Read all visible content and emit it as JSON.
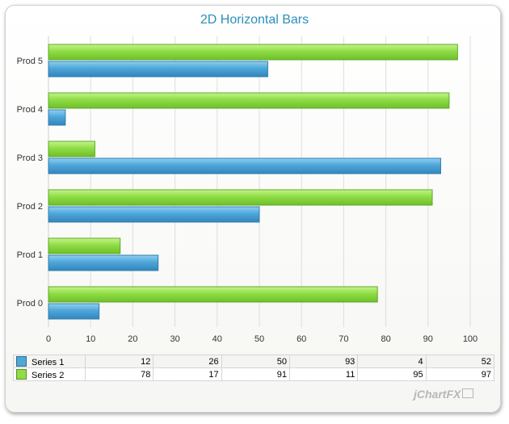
{
  "chart_data": {
    "type": "bar",
    "orientation": "horizontal",
    "title": "2D Horizontal Bars",
    "categories": [
      "Prod 0",
      "Prod 1",
      "Prod 2",
      "Prod 3",
      "Prod 4",
      "Prod 5"
    ],
    "series": [
      {
        "name": "Series 1",
        "values": [
          12,
          26,
          50,
          93,
          4,
          52
        ],
        "color": "#4ea6d9"
      },
      {
        "name": "Series 2",
        "values": [
          78,
          17,
          91,
          11,
          95,
          97
        ],
        "color": "#8fdc45"
      }
    ],
    "xlim": [
      0,
      100
    ],
    "xticks": [
      "0",
      "10",
      "20",
      "30",
      "40",
      "50",
      "60",
      "70",
      "80",
      "90",
      "100"
    ],
    "grid": true,
    "legend": "data table below chart"
  },
  "branding": {
    "text": "jChartFX"
  }
}
